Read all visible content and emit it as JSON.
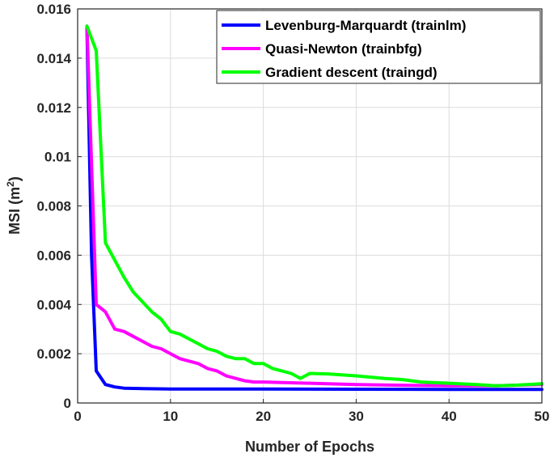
{
  "chart_data": {
    "type": "line",
    "title": "",
    "xlabel": "Number of Epochs",
    "ylabel_main": "MSI (m",
    "ylabel_sup": "2",
    "ylabel_end": ")",
    "xlim": [
      0,
      50
    ],
    "ylim": [
      0,
      0.016
    ],
    "xticks": [
      "0",
      "10",
      "20",
      "30",
      "40",
      "50"
    ],
    "yticks": [
      "0",
      "0.002",
      "0.004",
      "0.006",
      "0.008",
      "0.01",
      "0.012",
      "0.014",
      "0.016"
    ],
    "grid": true,
    "legend_position": "top-right",
    "series": [
      {
        "name": "Levenburg-Marquardt (trainlm)",
        "color": "#0000ff",
        "x": [
          1,
          1.5,
          2,
          3,
          4,
          5,
          7,
          10,
          20,
          30,
          40,
          50
        ],
        "y": [
          0.0152,
          0.006,
          0.0013,
          0.00075,
          0.00065,
          0.0006,
          0.00058,
          0.00057,
          0.00057,
          0.00056,
          0.00055,
          0.00055
        ]
      },
      {
        "name": "Quasi-Newton (trainbfg)",
        "color": "#ff00ff",
        "x": [
          1,
          2,
          3,
          4,
          5,
          6,
          7,
          8,
          9,
          10,
          11,
          12,
          13,
          14,
          15,
          16,
          17,
          18,
          19,
          20,
          22,
          25,
          30,
          35,
          40,
          45,
          50
        ],
        "y": [
          0.0153,
          0.004,
          0.0037,
          0.003,
          0.0029,
          0.0027,
          0.0025,
          0.0023,
          0.0022,
          0.002,
          0.0018,
          0.0017,
          0.0016,
          0.0014,
          0.0013,
          0.0011,
          0.001,
          0.0009,
          0.00085,
          0.00085,
          0.00083,
          0.0008,
          0.00075,
          0.00072,
          0.0007,
          0.0007,
          0.00075
        ]
      },
      {
        "name": "Gradient descent (traingd)",
        "color": "#00ff00",
        "x": [
          1,
          2,
          3,
          4,
          5,
          6,
          7,
          8,
          9,
          10,
          11,
          12,
          13,
          14,
          15,
          16,
          17,
          18,
          19,
          20,
          21,
          22,
          23,
          24,
          25,
          27,
          30,
          33,
          35,
          37,
          40,
          43,
          45,
          47,
          50
        ],
        "y": [
          0.0153,
          0.0143,
          0.0065,
          0.0058,
          0.0051,
          0.0045,
          0.0041,
          0.0037,
          0.0034,
          0.0029,
          0.0028,
          0.0026,
          0.0024,
          0.0022,
          0.0021,
          0.0019,
          0.0018,
          0.0018,
          0.0016,
          0.0016,
          0.0014,
          0.0013,
          0.0012,
          0.001,
          0.0012,
          0.00118,
          0.0011,
          0.001,
          0.00095,
          0.00085,
          0.0008,
          0.00075,
          0.0007,
          0.00072,
          0.00078
        ]
      }
    ]
  }
}
